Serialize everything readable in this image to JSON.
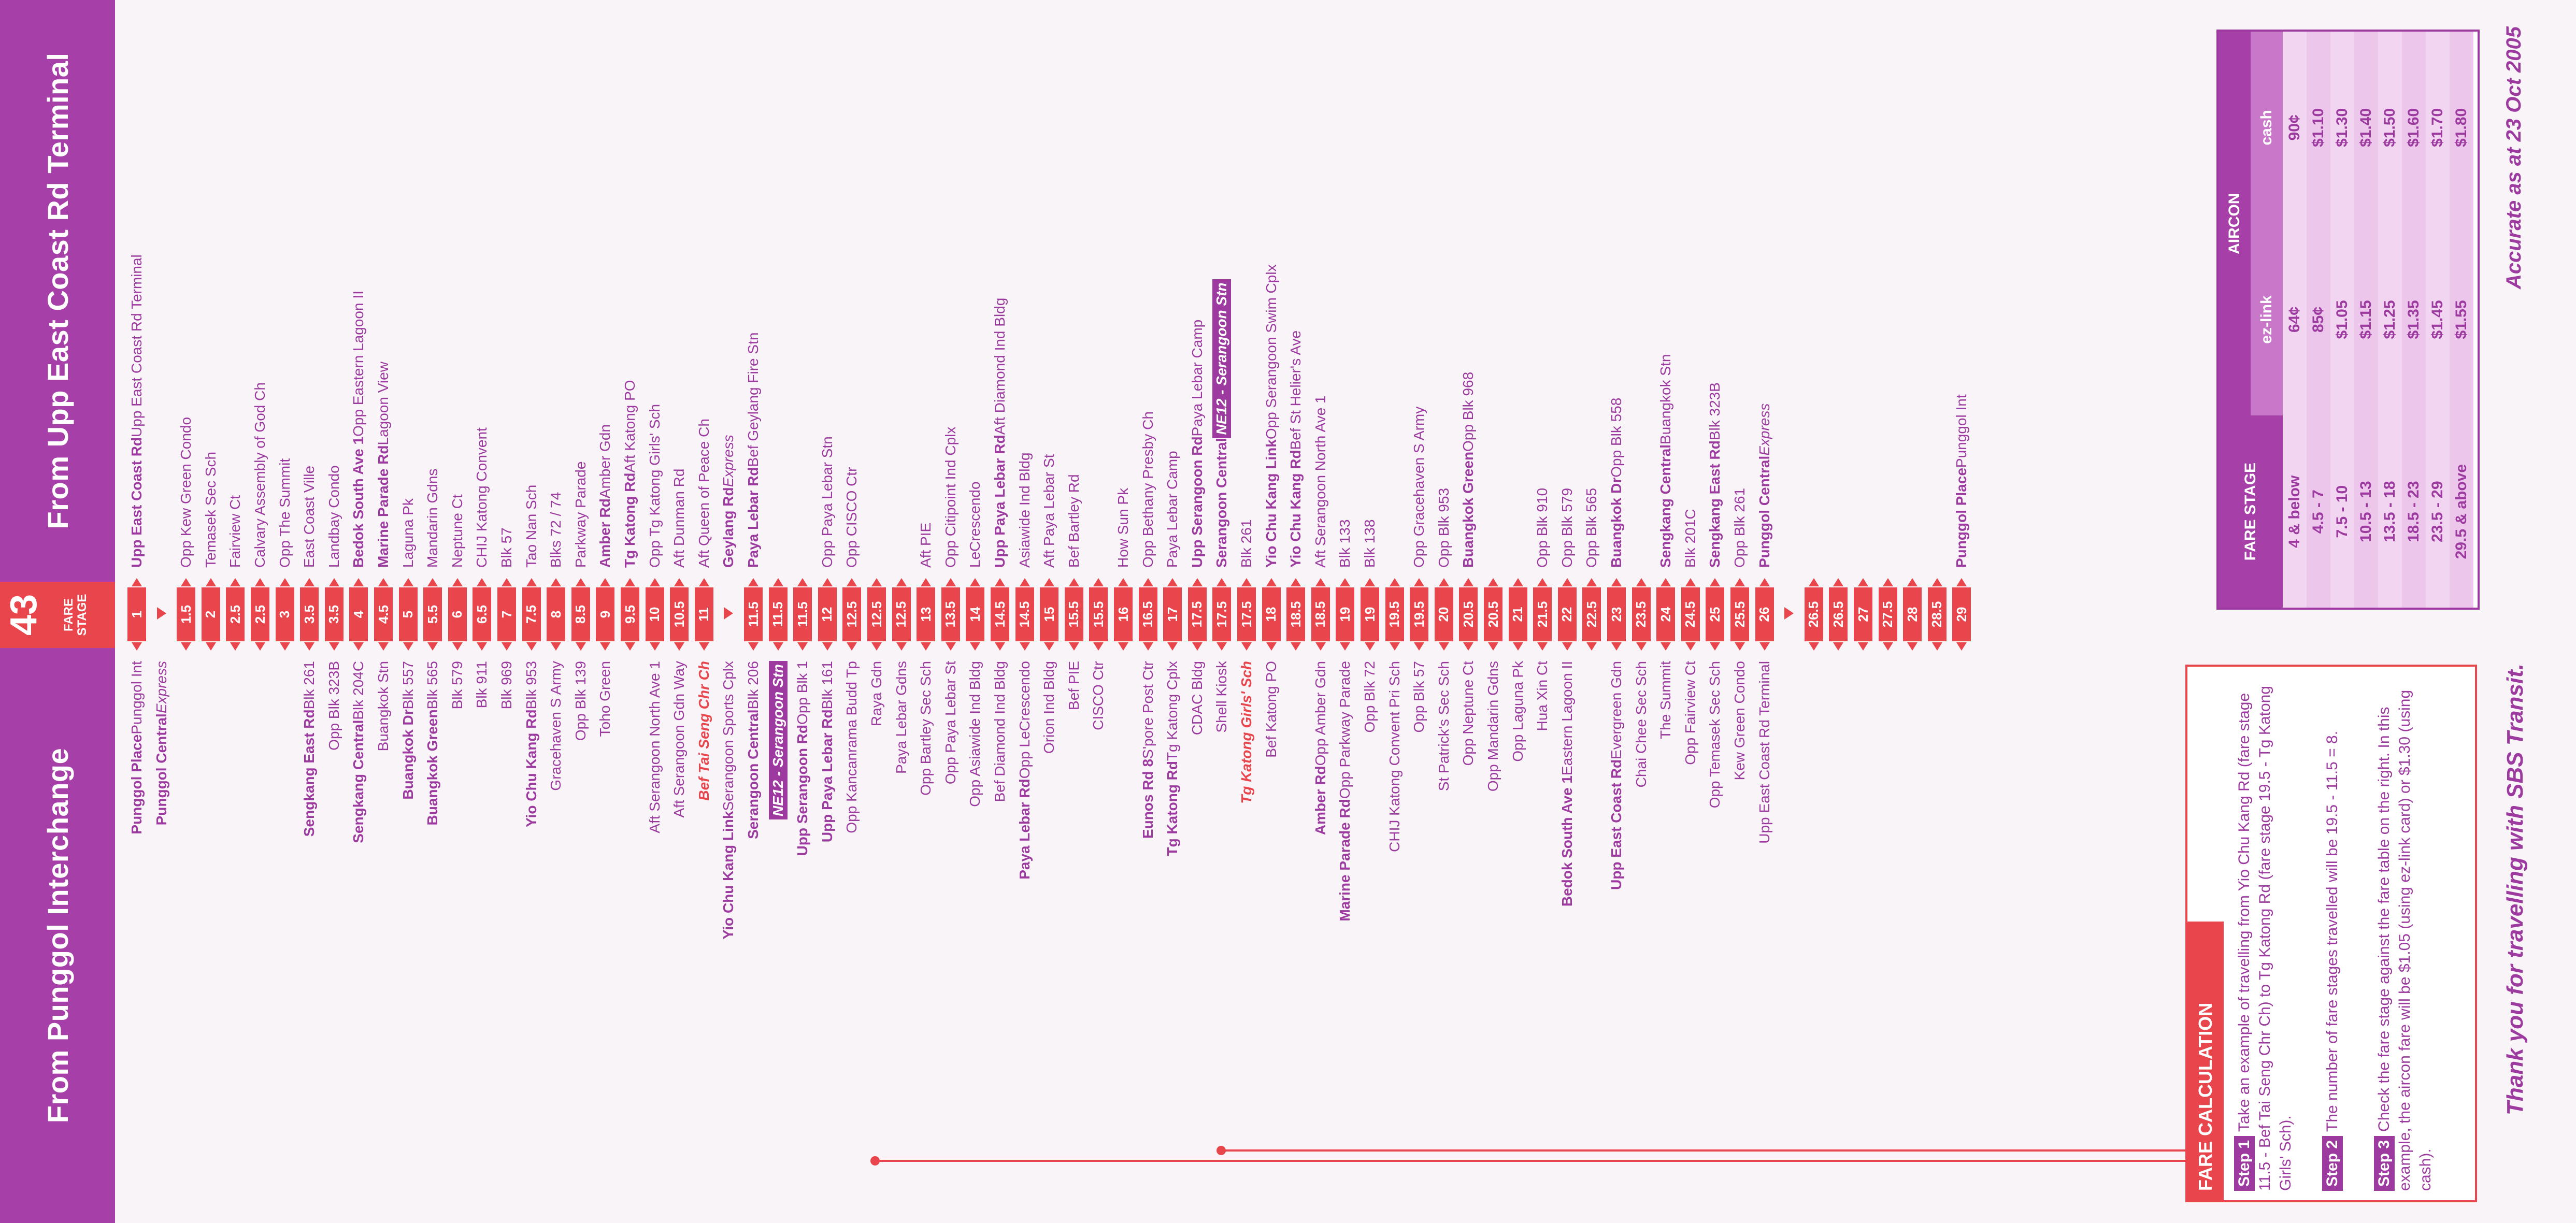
{
  "header": {
    "left_title": "From Punggol Interchange",
    "route_number": "43",
    "fare_stage_label": "FARE STAGE",
    "right_title": "From Upp East Coast Rd Terminal"
  },
  "left_stops": [
    {
      "segs": [
        [
          "b",
          "Punggol Place "
        ],
        [
          "t",
          "Punggol Int"
        ]
      ]
    },
    {
      "segs": [
        [
          "b",
          "Punggol Central "
        ],
        [
          "ex",
          "Express"
        ]
      ]
    },
    {
      "segs": []
    },
    {
      "segs": []
    },
    {
      "segs": []
    },
    {
      "segs": []
    },
    {
      "segs": []
    },
    {
      "segs": [
        [
          "b",
          "Sengkang East Rd "
        ],
        [
          "t",
          "Blk 261"
        ]
      ]
    },
    {
      "segs": [
        [
          "t",
          "Opp Blk 323B"
        ]
      ]
    },
    {
      "segs": [
        [
          "b",
          "Sengkang Central "
        ],
        [
          "t",
          "Blk 204C"
        ]
      ]
    },
    {
      "segs": [
        [
          "t",
          "Buangkok Stn"
        ]
      ]
    },
    {
      "segs": [
        [
          "b",
          "Buangkok Dr "
        ],
        [
          "t",
          "Blk 557"
        ]
      ]
    },
    {
      "segs": [
        [
          "b",
          "Buangkok Green "
        ],
        [
          "t",
          "Blk 565"
        ]
      ]
    },
    {
      "segs": [
        [
          "t",
          "Blk 579"
        ]
      ]
    },
    {
      "segs": [
        [
          "t",
          "Blk 911"
        ]
      ]
    },
    {
      "segs": [
        [
          "t",
          "Blk 969"
        ]
      ]
    },
    {
      "segs": [
        [
          "b",
          "Yio Chu Kang Rd "
        ],
        [
          "t",
          "Blk 953"
        ]
      ]
    },
    {
      "segs": [
        [
          "t",
          "Gracehaven S Army"
        ]
      ]
    },
    {
      "segs": [
        [
          "t",
          "Opp Blk 139"
        ]
      ]
    },
    {
      "segs": [
        [
          "t",
          "Toho Green"
        ]
      ]
    },
    {
      "segs": []
    },
    {
      "segs": [
        [
          "t",
          "Aft Serangoon North Ave 1"
        ]
      ]
    },
    {
      "segs": [
        [
          "t",
          "Aft Serangoon Gdn Way"
        ]
      ]
    },
    {
      "segs": [
        [
          "red",
          "Bef Tai Seng Chr Ch"
        ]
      ]
    },
    {
      "segs": [
        [
          "b",
          "Yio Chu Kang Link "
        ],
        [
          "t",
          "Serangoon Sports Cplx"
        ]
      ]
    },
    {
      "segs": [
        [
          "b",
          "Serangoon Central "
        ],
        [
          "t",
          "Blk 206"
        ]
      ]
    },
    {
      "segs": [
        [
          "tag",
          "NE12 - Serangoon Stn"
        ]
      ]
    },
    {
      "segs": [
        [
          "b",
          "Upp Serangoon Rd "
        ],
        [
          "t",
          "Opp Blk 1"
        ]
      ]
    },
    {
      "segs": [
        [
          "b",
          "Upp Paya Lebar Rd "
        ],
        [
          "t",
          "Blk 161"
        ]
      ]
    },
    {
      "segs": [
        [
          "t",
          "Opp Kancanrama Budd Tp"
        ]
      ]
    },
    {
      "segs": [
        [
          "t",
          "Raya Gdn"
        ]
      ]
    },
    {
      "segs": [
        [
          "t",
          "Paya Lebar Gdns"
        ]
      ]
    },
    {
      "segs": [
        [
          "t",
          "Opp Bartley Sec Sch"
        ]
      ]
    },
    {
      "segs": [
        [
          "t",
          "Opp Paya Lebar St"
        ]
      ]
    },
    {
      "segs": [
        [
          "t",
          "Opp Asiawide Ind Bldg"
        ]
      ]
    },
    {
      "segs": [
        [
          "t",
          "Bef Diamond Ind Bldg"
        ]
      ]
    },
    {
      "segs": [
        [
          "b",
          "Paya Lebar Rd "
        ],
        [
          "t",
          "Opp LeCrescendo"
        ]
      ]
    },
    {
      "segs": [
        [
          "t",
          "Orion Ind Bldg"
        ]
      ]
    },
    {
      "segs": [
        [
          "t",
          "Bef PIE"
        ]
      ]
    },
    {
      "segs": [
        [
          "t",
          "CISCO Ctr"
        ]
      ]
    },
    {
      "segs": []
    },
    {
      "segs": [
        [
          "b",
          "Eunos Rd 8 "
        ],
        [
          "t",
          "S'pore Post Ctr"
        ]
      ]
    },
    {
      "segs": [
        [
          "b",
          "Tg Katong Rd "
        ],
        [
          "t",
          "Tg Katong Cplx"
        ]
      ]
    },
    {
      "segs": [
        [
          "t",
          "CDAC Bldg"
        ]
      ]
    },
    {
      "segs": [
        [
          "t",
          "Shell Kiosk"
        ]
      ]
    },
    {
      "segs": [
        [
          "red",
          "Tg Katong Girls' Sch"
        ]
      ]
    },
    {
      "segs": [
        [
          "t",
          "Bef Katong PO"
        ]
      ]
    },
    {
      "segs": []
    },
    {
      "segs": [
        [
          "b",
          "Amber Rd "
        ],
        [
          "t",
          "Opp Amber Gdn"
        ]
      ]
    },
    {
      "segs": [
        [
          "b",
          "Marine Parade Rd "
        ],
        [
          "t",
          "Opp Parkway Parade"
        ]
      ]
    },
    {
      "segs": [
        [
          "t",
          "Opp Blk 72"
        ]
      ]
    },
    {
      "segs": [
        [
          "t",
          "CHIJ Katong Convent Pri Sch"
        ]
      ]
    },
    {
      "segs": [
        [
          "t",
          "Opp Blk 57"
        ]
      ]
    },
    {
      "segs": [
        [
          "t",
          "St Patrick's Sec Sch"
        ]
      ]
    },
    {
      "segs": [
        [
          "t",
          "Opp Neptune Ct"
        ]
      ]
    },
    {
      "segs": [
        [
          "t",
          "Opp Mandarin Gdns"
        ]
      ]
    },
    {
      "segs": [
        [
          "t",
          "Opp Laguna Pk"
        ]
      ]
    },
    {
      "segs": [
        [
          "t",
          "Hua Xin Ct"
        ]
      ]
    },
    {
      "segs": [
        [
          "b",
          "Bedok South Ave 1 "
        ],
        [
          "t",
          "Eastern Lagoon II"
        ]
      ]
    },
    {
      "segs": []
    },
    {
      "segs": [
        [
          "b",
          "Upp East Coast Rd "
        ],
        [
          "t",
          "Evergreen Gdn"
        ]
      ]
    },
    {
      "segs": [
        [
          "t",
          "Chai Chee Sec Sch"
        ]
      ]
    },
    {
      "segs": [
        [
          "t",
          "The Summit"
        ]
      ]
    },
    {
      "segs": [
        [
          "t",
          "Opp Fairview Ct"
        ]
      ]
    },
    {
      "segs": [
        [
          "t",
          "Opp Temasek Sec Sch"
        ]
      ]
    },
    {
      "segs": [
        [
          "t",
          "Kew Green Condo"
        ]
      ]
    },
    {
      "segs": [
        [
          "t",
          "Upp East Coast Rd Terminal"
        ]
      ]
    }
  ],
  "fare_stages": [
    "1",
    "",
    "1.5",
    "2",
    "2.5",
    "2.5",
    "3",
    "3.5",
    "3.5",
    "4",
    "4.5",
    "5",
    "5.5",
    "6",
    "6.5",
    "7",
    "7.5",
    "8",
    "8.5",
    "9",
    "9.5",
    "10",
    "10.5",
    "11",
    "",
    "11.5",
    "11.5",
    "11.5",
    "12",
    "12.5",
    "12.5",
    "12.5",
    "13",
    "13.5",
    "14",
    "14.5",
    "14.5",
    "15",
    "15.5",
    "15.5",
    "16",
    "16.5",
    "17",
    "17.5",
    "17.5",
    "17.5",
    "18",
    "18.5",
    "18.5",
    "19",
    "19",
    "19.5",
    "19.5",
    "20",
    "20.5",
    "20.5",
    "21",
    "21.5",
    "22",
    "22.5",
    "23",
    "23.5",
    "24",
    "24.5",
    "25",
    "25.5",
    "26",
    "",
    "26.5",
    "26.5",
    "27",
    "27.5",
    "28",
    "28.5",
    "29"
  ],
  "right_stops": [
    {
      "segs": [
        [
          "b",
          "Upp East Coast Rd "
        ],
        [
          "t",
          "Upp East Coast Rd Terminal"
        ]
      ]
    },
    {
      "segs": []
    },
    {
      "segs": [
        [
          "t",
          "Opp Kew Green Condo"
        ]
      ]
    },
    {
      "segs": [
        [
          "t",
          "Temasek Sec Sch"
        ]
      ]
    },
    {
      "segs": [
        [
          "t",
          "Fairview Ct"
        ]
      ]
    },
    {
      "segs": [
        [
          "t",
          "Calvary Assembly of God Ch"
        ]
      ]
    },
    {
      "segs": [
        [
          "t",
          "Opp The Summit"
        ]
      ]
    },
    {
      "segs": [
        [
          "t",
          "East Coast Ville"
        ]
      ]
    },
    {
      "segs": [
        [
          "t",
          "Landbay Condo"
        ]
      ]
    },
    {
      "segs": [
        [
          "b",
          "Bedok South Ave 1 "
        ],
        [
          "t",
          "Opp Eastern Lagoon II"
        ]
      ]
    },
    {
      "segs": [
        [
          "b",
          "Marine Parade Rd "
        ],
        [
          "t",
          "Lagoon View"
        ]
      ]
    },
    {
      "segs": [
        [
          "t",
          "Laguna Pk"
        ]
      ]
    },
    {
      "segs": [
        [
          "t",
          "Mandarin Gdns"
        ]
      ]
    },
    {
      "segs": [
        [
          "t",
          "Neptune Ct"
        ]
      ]
    },
    {
      "segs": [
        [
          "t",
          "CHIJ Katong Convent"
        ]
      ]
    },
    {
      "segs": [
        [
          "t",
          "Blk 57"
        ]
      ]
    },
    {
      "segs": [
        [
          "t",
          "Tao Nan Sch"
        ]
      ]
    },
    {
      "segs": [
        [
          "t",
          "Blks 72 / 74"
        ]
      ]
    },
    {
      "segs": [
        [
          "t",
          "Parkway Parade"
        ]
      ]
    },
    {
      "segs": [
        [
          "b",
          "Amber Rd "
        ],
        [
          "t",
          "Amber Gdn"
        ]
      ]
    },
    {
      "segs": [
        [
          "b",
          "Tg Katong Rd "
        ],
        [
          "t",
          "Aft Katong PO"
        ]
      ]
    },
    {
      "segs": [
        [
          "t",
          "Opp Tg Katong Girls' Sch"
        ]
      ]
    },
    {
      "segs": [
        [
          "t",
          "Aft Dunman Rd"
        ]
      ]
    },
    {
      "segs": [
        [
          "t",
          "Aft Queen of Peace Ch"
        ]
      ]
    },
    {
      "segs": [
        [
          "b",
          "Geylang Rd "
        ],
        [
          "ex",
          "Express"
        ]
      ]
    },
    {
      "segs": [
        [
          "b",
          "Paya Lebar Rd "
        ],
        [
          "t",
          "Bef Geylang Fire Stn"
        ]
      ]
    },
    {
      "segs": []
    },
    {
      "segs": []
    },
    {
      "segs": [
        [
          "t",
          "Opp Paya Lebar Stn"
        ]
      ]
    },
    {
      "segs": [
        [
          "t",
          "Opp CISCO Ctr"
        ]
      ]
    },
    {
      "segs": []
    },
    {
      "segs": []
    },
    {
      "segs": [
        [
          "t",
          "Aft PIE"
        ]
      ]
    },
    {
      "segs": [
        [
          "t",
          "Opp Citipoint Ind Cplx"
        ]
      ]
    },
    {
      "segs": [
        [
          "t",
          "LeCrescendo"
        ]
      ]
    },
    {
      "segs": [
        [
          "b",
          "Upp Paya Lebar Rd "
        ],
        [
          "t",
          "Aft Diamond Ind Bldg"
        ]
      ]
    },
    {
      "segs": [
        [
          "t",
          "Asiawide Ind Bldg"
        ]
      ]
    },
    {
      "segs": [
        [
          "t",
          "Aft Paya Lebar St"
        ]
      ]
    },
    {
      "segs": [
        [
          "t",
          "Bef Bartley Rd"
        ]
      ]
    },
    {
      "segs": []
    },
    {
      "segs": [
        [
          "t",
          "How Sun Pk"
        ]
      ]
    },
    {
      "segs": [
        [
          "t",
          "Opp Bethany Presby Ch"
        ]
      ]
    },
    {
      "segs": [
        [
          "t",
          "Paya Lebar Camp"
        ]
      ]
    },
    {
      "segs": [
        [
          "b",
          "Upp Serangoon Rd "
        ],
        [
          "t",
          "Paya Lebar Camp"
        ]
      ]
    },
    {
      "segs": [
        [
          "b",
          "Serangoon Central "
        ],
        [
          "tag",
          "NE12 - Serangoon Stn"
        ]
      ]
    },
    {
      "segs": [
        [
          "t",
          "Blk 261"
        ]
      ]
    },
    {
      "segs": [
        [
          "b",
          "Yio Chu Kang Link "
        ],
        [
          "t",
          "Opp Serangoon Swim Cplx"
        ]
      ]
    },
    {
      "segs": [
        [
          "b",
          "Yio Chu Kang Rd "
        ],
        [
          "t",
          "Bef St Helier's Ave"
        ]
      ]
    },
    {
      "segs": [
        [
          "t",
          "Aft Serangoon North Ave 1"
        ]
      ]
    },
    {
      "segs": [
        [
          "t",
          "Blk 133"
        ]
      ]
    },
    {
      "segs": [
        [
          "t",
          "Blk 138"
        ]
      ]
    },
    {
      "segs": []
    },
    {
      "segs": [
        [
          "t",
          "Opp Gracehaven S Army"
        ]
      ]
    },
    {
      "segs": [
        [
          "t",
          "Opp Blk 953"
        ]
      ]
    },
    {
      "segs": [
        [
          "b",
          "Buangkok Green "
        ],
        [
          "t",
          "Opp Blk 968"
        ]
      ]
    },
    {
      "segs": []
    },
    {
      "segs": []
    },
    {
      "segs": [
        [
          "t",
          "Opp Blk 910"
        ]
      ]
    },
    {
      "segs": [
        [
          "t",
          "Opp Blk 579"
        ]
      ]
    },
    {
      "segs": [
        [
          "t",
          "Opp Blk 565"
        ]
      ]
    },
    {
      "segs": [
        [
          "b",
          "Buangkok Dr "
        ],
        [
          "t",
          "Opp Blk 558"
        ]
      ]
    },
    {
      "segs": []
    },
    {
      "segs": [
        [
          "b",
          "Sengkang Central "
        ],
        [
          "t",
          "Buangkok Stn"
        ]
      ]
    },
    {
      "segs": [
        [
          "t",
          "Blk 201C"
        ]
      ]
    },
    {
      "segs": [
        [
          "b",
          "Sengkang East Rd "
        ],
        [
          "t",
          "Blk 323B"
        ]
      ]
    },
    {
      "segs": [
        [
          "t",
          "Opp Blk 261"
        ]
      ]
    },
    {
      "segs": [
        [
          "b",
          "Punggol Central "
        ],
        [
          "ex",
          "Express"
        ]
      ]
    },
    {
      "segs": []
    },
    {
      "segs": []
    },
    {
      "segs": []
    },
    {
      "segs": []
    },
    {
      "segs": []
    },
    {
      "segs": []
    },
    {
      "segs": []
    },
    {
      "segs": [
        [
          "b",
          "Punggol Place "
        ],
        [
          "t",
          "Punggol Int"
        ]
      ]
    }
  ],
  "fare_calculation": {
    "title": "FARE CALCULATION",
    "step1_tag": "Step 1",
    "step1_text": "Take an example of travelling from Yio Chu Kang Rd (fare stage 11.5 - Bef Tai Seng Chr Ch) to Tg Katong Rd (fare stage 19.5 - Tg Katong Girls' Sch).",
    "step2_tag": "Step 2",
    "step2_text": "The number of fare stages travelled will be 19.5 - 11.5 = 8.",
    "step3_tag": "Step 3",
    "step3_text": "Check the fare stage against the fare table on the right. In this example, the aircon fare will be $1.05 (using ez-link card) or $1.30 (using cash)."
  },
  "fare_table": {
    "stage_header": "FARE STAGE",
    "aircon_header": "AIRCON",
    "ezlink_header": "ez-link",
    "cash_header": "cash",
    "rows": [
      {
        "stage": "4 & below",
        "ezlink": "64¢",
        "cash": "90¢"
      },
      {
        "stage": "4.5 - 7",
        "ezlink": "85¢",
        "cash": "$1.10"
      },
      {
        "stage": "7.5 - 10",
        "ezlink": "$1.05",
        "cash": "$1.30"
      },
      {
        "stage": "10.5 - 13",
        "ezlink": "$1.15",
        "cash": "$1.40"
      },
      {
        "stage": "13.5 - 18",
        "ezlink": "$1.25",
        "cash": "$1.50"
      },
      {
        "stage": "18.5 - 23",
        "ezlink": "$1.35",
        "cash": "$1.60"
      },
      {
        "stage": "23.5 - 29",
        "ezlink": "$1.45",
        "cash": "$1.70"
      },
      {
        "stage": "29.5 & above",
        "ezlink": "$1.55",
        "cash": "$1.80"
      }
    ]
  },
  "footer": {
    "thanks": "Thank you for travelling with SBS Transit.",
    "accurate": "Accurate as at 23 Oct 2005"
  }
}
